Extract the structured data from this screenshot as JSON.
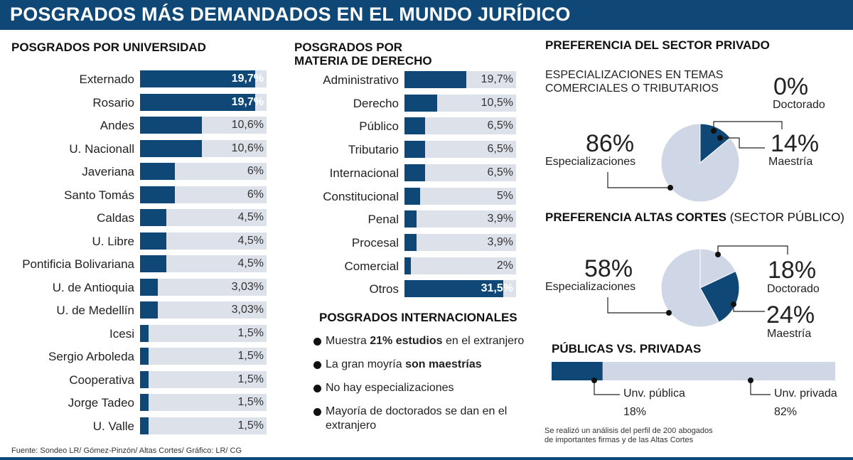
{
  "title": "POSGRADOS MÁS DEMANDADOS EN EL MUNDO JURÍDICO",
  "universidad": {
    "heading": "POSGRADOS POR UNIVERSIDAD",
    "rows": [
      {
        "label": "Externado",
        "value": 19.7,
        "text": "19,7%",
        "highlight": true
      },
      {
        "label": "Rosario",
        "value": 19.7,
        "text": "19,7%",
        "highlight": true
      },
      {
        "label": "Andes",
        "value": 10.6,
        "text": "10,6%",
        "highlight": false
      },
      {
        "label": "U. Nacionall",
        "value": 10.6,
        "text": "10,6%",
        "highlight": false
      },
      {
        "label": "Javeriana",
        "value": 6,
        "text": "6%",
        "highlight": false
      },
      {
        "label": "Santo Tomás",
        "value": 6,
        "text": "6%",
        "highlight": false
      },
      {
        "label": "Caldas",
        "value": 4.5,
        "text": "4,5%",
        "highlight": false
      },
      {
        "label": "U. Libre",
        "value": 4.5,
        "text": "4,5%",
        "highlight": false
      },
      {
        "label": "Pontificia Bolivariana",
        "value": 4.5,
        "text": "4,5%",
        "highlight": false
      },
      {
        "label": "U. de Antioquia",
        "value": 3.03,
        "text": "3,03%",
        "highlight": false
      },
      {
        "label": "U. de Medellín",
        "value": 3.03,
        "text": "3,03%",
        "highlight": false
      },
      {
        "label": "Icesi",
        "value": 1.5,
        "text": "1,5%",
        "highlight": false
      },
      {
        "label": "Sergio Arboleda",
        "value": 1.5,
        "text": "1,5%",
        "highlight": false
      },
      {
        "label": "Cooperativa",
        "value": 1.5,
        "text": "1,5%",
        "highlight": false
      },
      {
        "label": "Jorge Tadeo",
        "value": 1.5,
        "text": "1,5%",
        "highlight": false
      },
      {
        "label": "U. Valle",
        "value": 1.5,
        "text": "1,5%",
        "highlight": false
      }
    ]
  },
  "materia": {
    "heading_line1": "POSGRADOS POR",
    "heading_line2": "MATERIA DE DERECHO",
    "rows": [
      {
        "label": "Administrativo",
        "value": 19.7,
        "text": "19,7%",
        "highlight": false
      },
      {
        "label": "Derecho",
        "value": 10.5,
        "text": "10,5%",
        "highlight": false
      },
      {
        "label": "Público",
        "value": 6.5,
        "text": "6,5%",
        "highlight": false
      },
      {
        "label": "Tributario",
        "value": 6.5,
        "text": "6,5%",
        "highlight": false
      },
      {
        "label": "Internacional",
        "value": 6.5,
        "text": "6,5%",
        "highlight": false
      },
      {
        "label": "Constitucional",
        "value": 5,
        "text": "5%",
        "highlight": false
      },
      {
        "label": "Penal",
        "value": 3.9,
        "text": "3,9%",
        "highlight": false
      },
      {
        "label": "Procesal",
        "value": 3.9,
        "text": "3,9%",
        "highlight": false
      },
      {
        "label": "Comercial",
        "value": 2,
        "text": "2%",
        "highlight": false
      },
      {
        "label": "Otros",
        "value": 31.5,
        "text": "31,5%",
        "highlight": true
      }
    ]
  },
  "internacionales": {
    "heading": "POSGRADOS INTERNACIONALES",
    "items": [
      {
        "pre": "Muestra ",
        "bold": "21% estudios",
        "post": " en el extranjero"
      },
      {
        "pre": "La gran moyría ",
        "bold": "son maestrías",
        "post": ""
      },
      {
        "pre": "No hay especializaciones",
        "bold": "",
        "post": ""
      },
      {
        "pre": "Mayoría de doctorados se dan en el extranjero",
        "bold": "",
        "post": ""
      }
    ]
  },
  "privado": {
    "heading": "PREFERENCIA DEL SECTOR PRIVADO",
    "note_line1": "ESPECIALIZACIONES EN TEMAS",
    "note_line2": "COMERCIALES O TRIBUTARIOS",
    "slices": [
      {
        "label": "Maestría",
        "value": 14,
        "text": "14%",
        "color": "#0f4877"
      },
      {
        "label": "Doctorado",
        "value": 0,
        "text": "0%",
        "color": "#0f4877"
      },
      {
        "label": "Especializaciones",
        "value": 86,
        "text": "86%",
        "color": "#cfd7e6"
      }
    ]
  },
  "altas_cortes": {
    "heading_bold": "PREFERENCIA ALTAS CORTES",
    "heading_normal": " (SECTOR PÚBLICO)",
    "slices": [
      {
        "label": "Doctorado",
        "value": 18,
        "text": "18%",
        "color": "#cfd7e6"
      },
      {
        "label": "Maestría",
        "value": 24,
        "text": "24%",
        "color": "#0f4877"
      },
      {
        "label": "Especializaciones",
        "value": 58,
        "text": "58%",
        "color": "#cfd7e6"
      }
    ]
  },
  "publicas": {
    "heading": "PÚBLICAS VS. PRIVADAS",
    "publica": {
      "label": "Unv. pública",
      "value": 18,
      "text": "18%"
    },
    "privada": {
      "label": "Unv. privada",
      "value": 82,
      "text": "82%"
    },
    "note_line1": "Se realizó un análisis del perfil de 200 abogados",
    "note_line2": "de importantes firmas y de las Altas Cortes"
  },
  "footer": "Fuente: Sondeo LR/ Gómez-Pinzón/ Altas Cortes/ Gráfico: LR/ CG",
  "chart_data": [
    {
      "type": "bar",
      "title": "POSGRADOS POR UNIVERSIDAD",
      "unit": "%",
      "categories": [
        "Externado",
        "Rosario",
        "Andes",
        "U. Nacionall",
        "Javeriana",
        "Santo Tomás",
        "Caldas",
        "U. Libre",
        "Pontificia Bolivariana",
        "U. de Antioquia",
        "U. de Medellín",
        "Icesi",
        "Sergio Arboleda",
        "Cooperativa",
        "Jorge Tadeo",
        "U. Valle"
      ],
      "values": [
        19.7,
        19.7,
        10.6,
        10.6,
        6,
        6,
        4.5,
        4.5,
        4.5,
        3.03,
        3.03,
        1.5,
        1.5,
        1.5,
        1.5,
        1.5
      ]
    },
    {
      "type": "bar",
      "title": "POSGRADOS POR MATERIA DE DERECHO",
      "unit": "%",
      "categories": [
        "Administrativo",
        "Derecho",
        "Público",
        "Tributario",
        "Internacional",
        "Constitucional",
        "Penal",
        "Procesal",
        "Comercial",
        "Otros"
      ],
      "values": [
        19.7,
        10.5,
        6.5,
        6.5,
        6.5,
        5,
        3.9,
        3.9,
        2,
        31.5
      ]
    },
    {
      "type": "pie",
      "title": "PREFERENCIA DEL SECTOR PRIVADO",
      "categories": [
        "Especializaciones",
        "Maestría",
        "Doctorado"
      ],
      "values": [
        86,
        14,
        0
      ]
    },
    {
      "type": "pie",
      "title": "PREFERENCIA ALTAS CORTES (SECTOR PÚBLICO)",
      "categories": [
        "Especializaciones",
        "Doctorado",
        "Maestría"
      ],
      "values": [
        58,
        18,
        24
      ]
    },
    {
      "type": "bar",
      "title": "PÚBLICAS VS. PRIVADAS",
      "stacked": true,
      "categories": [
        "Unv. pública",
        "Unv. privada"
      ],
      "values": [
        18,
        82
      ]
    }
  ]
}
